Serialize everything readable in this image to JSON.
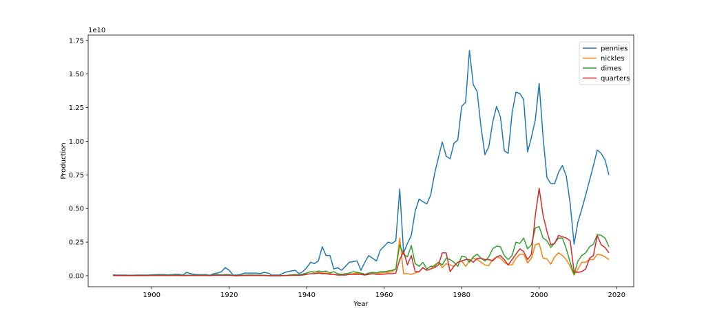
{
  "chart_data": {
    "type": "line",
    "title": "",
    "xlabel": "Year",
    "ylabel": "Production",
    "y_scale_label": "1e10",
    "y_unit_multiplier": 10000000000.0,
    "xlim": [
      1883.6,
      2024.4
    ],
    "ylim": [
      -0.082,
      1.79
    ],
    "xticks": [
      1900,
      1920,
      1940,
      1960,
      1980,
      2000,
      2020
    ],
    "yticks": [
      0.0,
      0.25,
      0.5,
      0.75,
      1.0,
      1.25,
      1.5,
      1.75
    ],
    "ytick_labels": [
      "0.00",
      "0.25",
      "0.50",
      "0.75",
      "1.00",
      "1.25",
      "1.50",
      "1.75"
    ],
    "grid": false,
    "legend": "top-right",
    "x_start": 1890,
    "x_step": 1,
    "series": [
      {
        "name": "pennies",
        "color": "#1f77b4",
        "values": [
          0.006,
          0.005,
          0.005,
          0.005,
          0.004,
          0.004,
          0.005,
          0.005,
          0.005,
          0.005,
          0.007,
          0.008,
          0.009,
          0.009,
          0.006,
          0.008,
          0.01,
          0.01,
          0.005,
          0.025,
          0.015,
          0.01,
          0.008,
          0.008,
          0.008,
          0.004,
          0.015,
          0.02,
          0.03,
          0.06,
          0.04,
          0.005,
          0.005,
          0.01,
          0.02,
          0.02,
          0.02,
          0.02,
          0.015,
          0.025,
          0.02,
          0.005,
          0.005,
          0.005,
          0.02,
          0.03,
          0.035,
          0.04,
          0.015,
          0.03,
          0.06,
          0.1,
          0.09,
          0.11,
          0.215,
          0.15,
          0.15,
          0.05,
          0.06,
          0.04,
          0.07,
          0.1,
          0.105,
          0.11,
          0.04,
          0.1,
          0.15,
          0.13,
          0.11,
          0.19,
          0.22,
          0.25,
          0.24,
          0.26,
          0.645,
          0.17,
          0.24,
          0.3,
          0.48,
          0.57,
          0.55,
          0.535,
          0.6,
          0.76,
          0.88,
          0.995,
          0.89,
          0.87,
          0.985,
          1.01,
          1.26,
          1.29,
          1.675,
          1.42,
          1.37,
          1.1,
          0.9,
          0.96,
          1.14,
          1.26,
          1.18,
          0.93,
          0.91,
          1.21,
          1.365,
          1.355,
          1.31,
          0.92,
          1.03,
          1.16,
          1.43,
          1.03,
          0.73,
          0.685,
          0.685,
          0.77,
          0.82,
          0.74,
          0.54,
          0.235,
          0.4,
          0.495,
          0.6,
          0.71,
          0.82,
          0.935,
          0.91,
          0.86,
          0.75
        ]
      },
      {
        "name": "nickles",
        "color": "#ff7f0e",
        "values": [
          0.002,
          0.002,
          0.002,
          0.002,
          0.001,
          0.001,
          0.001,
          0.002,
          0.002,
          0.002,
          0.003,
          0.003,
          0.003,
          0.003,
          0.002,
          0.003,
          0.004,
          0.004,
          0.001,
          0.002,
          0.003,
          0.004,
          0.003,
          0.004,
          0.003,
          0.002,
          0.006,
          0.006,
          0.005,
          0.006,
          0.006,
          0.001,
          0.0,
          0.003,
          0.004,
          0.005,
          0.004,
          0.004,
          0.003,
          0.003,
          0.001,
          0.0,
          0.0,
          0.0,
          0.001,
          0.002,
          0.005,
          0.006,
          0.005,
          0.01,
          0.02,
          0.03,
          0.03,
          0.025,
          0.02,
          0.02,
          0.015,
          0.01,
          0.005,
          0.01,
          0.005,
          0.01,
          0.015,
          0.02,
          0.01,
          0.005,
          0.02,
          0.025,
          0.02,
          0.02,
          0.025,
          0.025,
          0.03,
          0.05,
          0.28,
          0.015,
          0.015,
          0.01,
          0.02,
          0.03,
          0.06,
          0.04,
          0.05,
          0.08,
          0.1,
          0.06,
          0.09,
          0.08,
          0.07,
          0.1,
          0.11,
          0.07,
          0.11,
          0.13,
          0.12,
          0.1,
          0.08,
          0.075,
          0.12,
          0.14,
          0.13,
          0.1,
          0.08,
          0.08,
          0.13,
          0.16,
          0.16,
          0.095,
          0.13,
          0.23,
          0.24,
          0.13,
          0.125,
          0.085,
          0.14,
          0.17,
          0.15,
          0.12,
          0.07,
          0.005,
          0.05,
          0.1,
          0.1,
          0.12,
          0.12,
          0.16,
          0.155,
          0.14,
          0.12
        ]
      },
      {
        "name": "dimes",
        "color": "#2ca02c",
        "values": [
          0.003,
          0.003,
          0.003,
          0.002,
          0.002,
          0.002,
          0.003,
          0.003,
          0.003,
          0.003,
          0.004,
          0.004,
          0.005,
          0.005,
          0.004,
          0.005,
          0.005,
          0.005,
          0.003,
          0.004,
          0.004,
          0.005,
          0.004,
          0.005,
          0.004,
          0.003,
          0.007,
          0.008,
          0.007,
          0.008,
          0.008,
          0.002,
          0.001,
          0.003,
          0.004,
          0.005,
          0.005,
          0.005,
          0.004,
          0.004,
          0.001,
          0.0,
          0.0,
          0.0,
          0.002,
          0.003,
          0.006,
          0.008,
          0.006,
          0.012,
          0.02,
          0.03,
          0.025,
          0.035,
          0.03,
          0.035,
          0.02,
          0.03,
          0.015,
          0.01,
          0.015,
          0.02,
          0.03,
          0.025,
          0.02,
          0.01,
          0.02,
          0.025,
          0.02,
          0.03,
          0.03,
          0.035,
          0.04,
          0.05,
          0.23,
          0.16,
          0.14,
          0.225,
          0.09,
          0.07,
          0.1,
          0.05,
          0.07,
          0.07,
          0.1,
          0.08,
          0.13,
          0.12,
          0.1,
          0.07,
          0.145,
          0.14,
          0.1,
          0.14,
          0.16,
          0.13,
          0.11,
          0.14,
          0.2,
          0.22,
          0.215,
          0.15,
          0.12,
          0.15,
          0.25,
          0.24,
          0.28,
          0.2,
          0.23,
          0.355,
          0.365,
          0.28,
          0.26,
          0.21,
          0.245,
          0.28,
          0.28,
          0.2,
          0.1,
          0.01,
          0.11,
          0.15,
          0.17,
          0.215,
          0.235,
          0.305,
          0.3,
          0.28,
          0.215
        ]
      },
      {
        "name": "quarters",
        "color": "#d62728",
        "values": [
          0.001,
          0.001,
          0.001,
          0.001,
          0.001,
          0.001,
          0.001,
          0.001,
          0.001,
          0.001,
          0.002,
          0.002,
          0.002,
          0.002,
          0.002,
          0.002,
          0.002,
          0.002,
          0.001,
          0.002,
          0.002,
          0.002,
          0.002,
          0.002,
          0.002,
          0.001,
          0.003,
          0.003,
          0.003,
          0.003,
          0.003,
          0.001,
          0.0,
          0.001,
          0.002,
          0.002,
          0.002,
          0.002,
          0.002,
          0.002,
          0.0,
          0.0,
          0.0,
          0.0,
          0.001,
          0.002,
          0.003,
          0.004,
          0.003,
          0.005,
          0.01,
          0.015,
          0.015,
          0.02,
          0.015,
          0.015,
          0.01,
          0.01,
          0.005,
          0.005,
          0.005,
          0.01,
          0.01,
          0.01,
          0.01,
          0.005,
          0.01,
          0.015,
          0.01,
          0.01,
          0.012,
          0.015,
          0.015,
          0.02,
          0.12,
          0.18,
          0.08,
          0.15,
          0.03,
          0.03,
          0.06,
          0.04,
          0.05,
          0.06,
          0.08,
          0.17,
          0.17,
          0.03,
          0.07,
          0.1,
          0.11,
          0.12,
          0.12,
          0.1,
          0.13,
          0.13,
          0.12,
          0.12,
          0.11,
          0.14,
          0.15,
          0.12,
          0.08,
          0.12,
          0.16,
          0.2,
          0.18,
          0.12,
          0.16,
          0.45,
          0.65,
          0.45,
          0.33,
          0.23,
          0.24,
          0.3,
          0.29,
          0.28,
          0.26,
          0.03,
          0.025,
          0.03,
          0.05,
          0.13,
          0.15,
          0.3,
          0.23,
          0.21,
          0.17
        ]
      }
    ]
  }
}
